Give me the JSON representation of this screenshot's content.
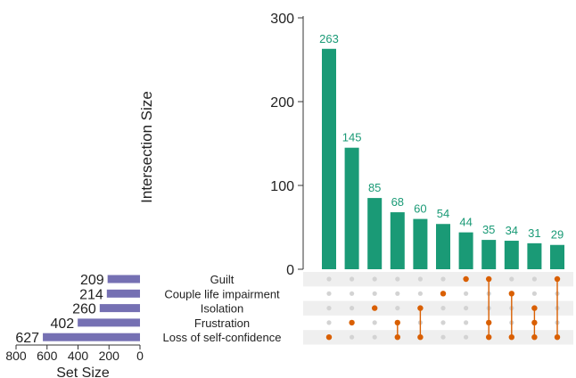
{
  "chart_data": {
    "type": "upset",
    "intersection_axis": {
      "label": "Intersection Size",
      "ylim": [
        0,
        300
      ],
      "ticks": [
        "0",
        "100",
        "200",
        "300"
      ]
    },
    "intersections": [
      {
        "size": 263,
        "label": "263",
        "sets": [
          "Loss of self-confidence"
        ]
      },
      {
        "size": 145,
        "label": "145",
        "sets": [
          "Frustration"
        ]
      },
      {
        "size": 85,
        "label": "85",
        "sets": [
          "Isolation"
        ]
      },
      {
        "size": 68,
        "label": "68",
        "sets": [
          "Frustration",
          "Loss of self-confidence"
        ]
      },
      {
        "size": 60,
        "label": "60",
        "sets": [
          "Isolation",
          "Loss of self-confidence"
        ]
      },
      {
        "size": 54,
        "label": "54",
        "sets": [
          "Couple life impairment"
        ]
      },
      {
        "size": 44,
        "label": "44",
        "sets": [
          "Guilt"
        ]
      },
      {
        "size": 35,
        "label": "35",
        "sets": [
          "Guilt",
          "Frustration",
          "Loss of self-confidence"
        ]
      },
      {
        "size": 34,
        "label": "34",
        "sets": [
          "Couple life impairment",
          "Loss of self-confidence"
        ]
      },
      {
        "size": 31,
        "label": "31",
        "sets": [
          "Isolation",
          "Frustration",
          "Loss of self-confidence"
        ]
      },
      {
        "size": 29,
        "label": "29",
        "sets": [
          "Guilt",
          "Loss of self-confidence"
        ]
      }
    ],
    "sets": [
      {
        "name": "Guilt",
        "size": 209,
        "label": "209"
      },
      {
        "name": "Couple life impairment",
        "size": 214,
        "label": "214"
      },
      {
        "name": "Isolation",
        "size": 260,
        "label": "260"
      },
      {
        "name": "Frustration",
        "size": 402,
        "label": "402"
      },
      {
        "name": "Loss of self-confidence",
        "size": 627,
        "label": "627"
      }
    ],
    "set_size_axis": {
      "label": "Set Size",
      "xlim": [
        800,
        0
      ],
      "ticks": [
        "800",
        "600",
        "400",
        "200",
        "0"
      ],
      "reversed": true
    },
    "colors": {
      "intersection_bar": "#1a9a76",
      "intersection_label": "#1a9a76",
      "set_bar": "#7570b3",
      "dot_active": "#d95f02",
      "dot_inactive": "#d3d3d3",
      "row_shade": "#efefef",
      "text": "#222222"
    }
  }
}
